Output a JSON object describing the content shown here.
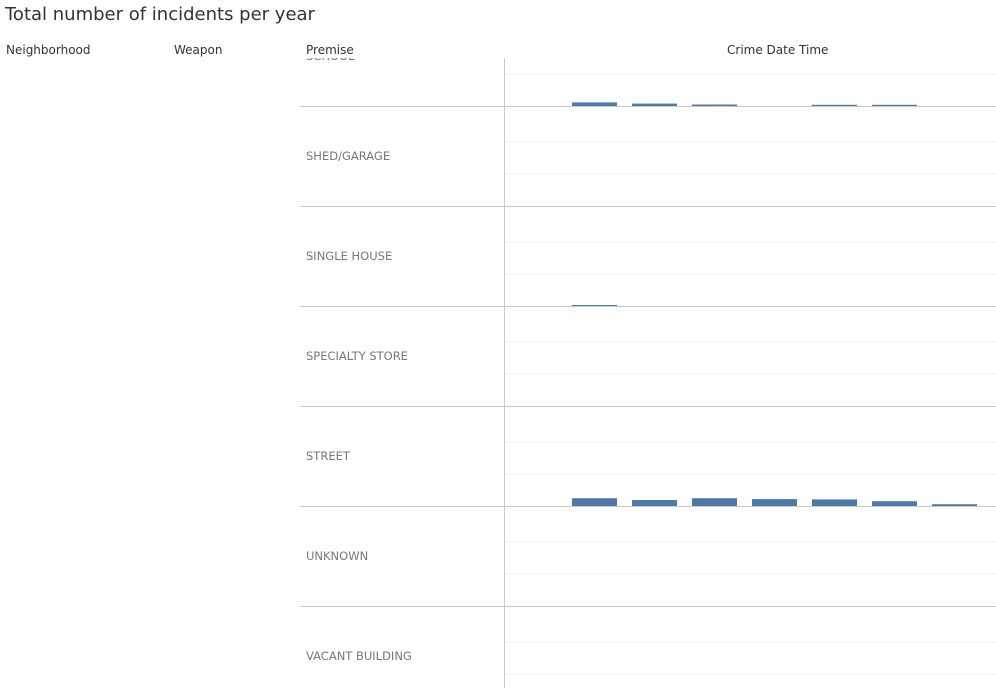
{
  "title": "Total number of incidents per year",
  "columns": {
    "neighborhood": "Neighborhood",
    "weapon": "Weapon",
    "premise": "Premise",
    "crime_date_time": "Crime Date Time"
  },
  "colors": {
    "bar": "#4e79a7",
    "row_divider": "#c8c8c8",
    "gridline": "#efefef"
  },
  "chart_data": {
    "type": "bar",
    "title": "Total number of incidents per year",
    "xlabel": "Crime Date Time",
    "ylabel": "",
    "categories_label": "Premise",
    "slots": 8,
    "ylim": [
      0,
      10
    ],
    "grid": true,
    "rows": [
      {
        "premise": "SCHOOL",
        "values": [
          null,
          1.2,
          0.8,
          0.5,
          null,
          0.4,
          0.4,
          null
        ]
      },
      {
        "premise": "SHED/GARAGE",
        "values": [
          null,
          null,
          null,
          null,
          null,
          null,
          null,
          null
        ]
      },
      {
        "premise": "SINGLE HOUSE",
        "values": [
          null,
          0.3,
          null,
          null,
          null,
          null,
          null,
          null
        ]
      },
      {
        "premise": "SPECIALTY STORE",
        "values": [
          null,
          null,
          null,
          null,
          null,
          null,
          null,
          null
        ]
      },
      {
        "premise": "STREET",
        "values": [
          null,
          2.6,
          2.0,
          2.6,
          2.3,
          2.2,
          1.6,
          0.6
        ]
      },
      {
        "premise": "UNKNOWN",
        "values": [
          null,
          null,
          null,
          null,
          null,
          null,
          null,
          null
        ]
      },
      {
        "premise": "VACANT BUILDING",
        "values": [
          null,
          null,
          null,
          null,
          null,
          null,
          null,
          null
        ]
      }
    ]
  }
}
